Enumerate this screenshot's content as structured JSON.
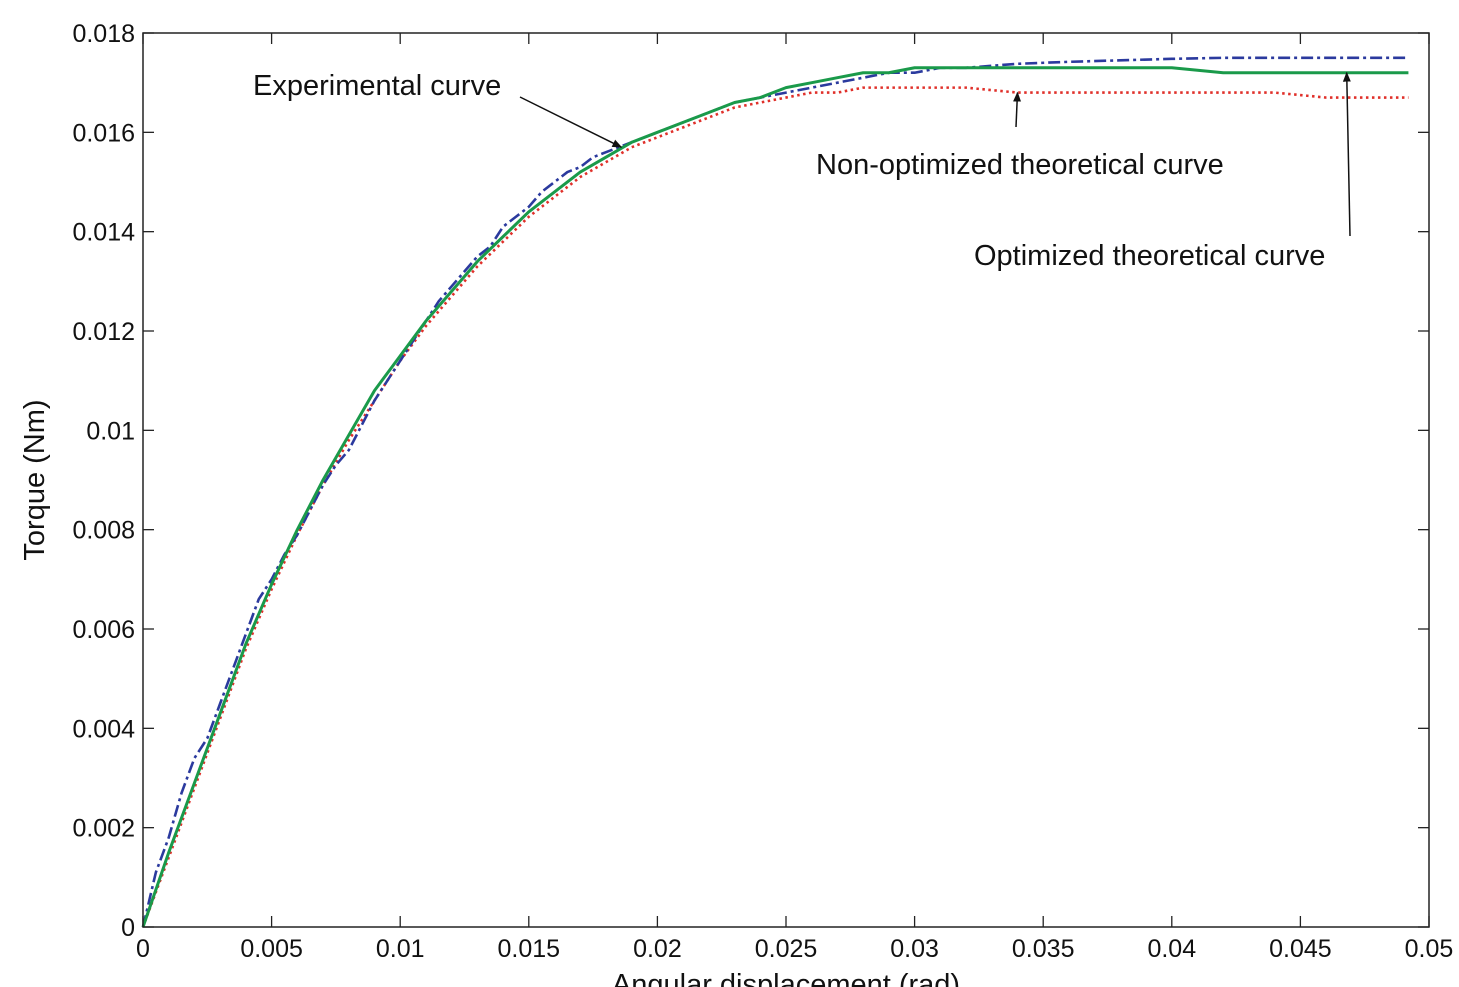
{
  "chart_data": {
    "type": "line",
    "title": "",
    "xlabel": "Angular displacement (rad)",
    "ylabel": "Torque (Nm)",
    "xlim": [
      0,
      0.05
    ],
    "ylim": [
      0,
      0.018
    ],
    "xticks": [
      "0",
      "0.005",
      "0.01",
      "0.015",
      "0.02",
      "0.025",
      "0.03",
      "0.035",
      "0.04",
      "0.045",
      "0.05"
    ],
    "yticks": [
      "0",
      "0.002",
      "0.004",
      "0.006",
      "0.008",
      "0.01",
      "0.012",
      "0.014",
      "0.016",
      "0.018"
    ],
    "grid": false,
    "series": [
      {
        "name": "Experimental curve",
        "color": "#2b3a9e",
        "style": "dashdot",
        "x": [
          0,
          0.0005,
          0.001,
          0.0015,
          0.002,
          0.0025,
          0.003,
          0.0035,
          0.004,
          0.0045,
          0.005,
          0.0055,
          0.006,
          0.0065,
          0.007,
          0.0075,
          0.008,
          0.0085,
          0.009,
          0.0095,
          0.01,
          0.0105,
          0.011,
          0.0115,
          0.012,
          0.0125,
          0.013,
          0.0135,
          0.014,
          0.0145,
          0.015,
          0.0155,
          0.016,
          0.0165,
          0.017,
          0.0175,
          0.018,
          0.0185,
          0.019,
          0.0195,
          0.02,
          0.021,
          0.022,
          0.023,
          0.024,
          0.025,
          0.026,
          0.027,
          0.028,
          0.029,
          0.03,
          0.031,
          0.032,
          0.034,
          0.036,
          0.038,
          0.04,
          0.042,
          0.044,
          0.046,
          0.048,
          0.0492
        ],
        "y": [
          0,
          0.0011,
          0.0018,
          0.0027,
          0.0034,
          0.0038,
          0.0045,
          0.0052,
          0.0059,
          0.0066,
          0.007,
          0.0075,
          0.0079,
          0.0084,
          0.0089,
          0.0093,
          0.0096,
          0.0101,
          0.0106,
          0.011,
          0.0114,
          0.0118,
          0.0122,
          0.0126,
          0.0129,
          0.0132,
          0.0135,
          0.0137,
          0.0141,
          0.0143,
          0.0145,
          0.0148,
          0.015,
          0.0152,
          0.0153,
          0.0155,
          0.0156,
          0.0157,
          0.0158,
          0.0159,
          0.016,
          0.0162,
          0.0164,
          0.0166,
          0.0167,
          0.0168,
          0.0169,
          0.017,
          0.0171,
          0.0172,
          0.0172,
          0.0173,
          0.0173,
          0.01738,
          0.01742,
          0.01745,
          0.01748,
          0.0175,
          0.0175,
          0.0175,
          0.0175,
          0.0175
        ]
      },
      {
        "name": "Optimized theoretical curve",
        "color": "#1a9a4a",
        "style": "solid",
        "x": [
          0,
          0.001,
          0.002,
          0.003,
          0.004,
          0.005,
          0.006,
          0.007,
          0.008,
          0.009,
          0.01,
          0.011,
          0.012,
          0.013,
          0.014,
          0.015,
          0.016,
          0.017,
          0.018,
          0.019,
          0.02,
          0.021,
          0.022,
          0.023,
          0.024,
          0.025,
          0.026,
          0.027,
          0.028,
          0.029,
          0.03,
          0.032,
          0.034,
          0.036,
          0.038,
          0.04,
          0.042,
          0.044,
          0.046,
          0.048,
          0.0492
        ],
        "y": [
          0,
          0.0015,
          0.0029,
          0.0043,
          0.0057,
          0.0069,
          0.008,
          0.009,
          0.0099,
          0.0108,
          0.0115,
          0.0122,
          0.0128,
          0.0134,
          0.0139,
          0.0144,
          0.0148,
          0.0152,
          0.0155,
          0.0158,
          0.016,
          0.0162,
          0.0164,
          0.0166,
          0.0167,
          0.0169,
          0.017,
          0.0171,
          0.0172,
          0.0172,
          0.0173,
          0.0173,
          0.0173,
          0.0173,
          0.0173,
          0.0173,
          0.0172,
          0.0172,
          0.0172,
          0.0172,
          0.0172
        ]
      },
      {
        "name": "Non-optimized theoretical curve",
        "color": "#e0302a",
        "style": "dotted",
        "x": [
          0,
          0.001,
          0.002,
          0.003,
          0.004,
          0.005,
          0.006,
          0.007,
          0.008,
          0.009,
          0.01,
          0.011,
          0.012,
          0.013,
          0.014,
          0.015,
          0.016,
          0.017,
          0.018,
          0.019,
          0.02,
          0.021,
          0.022,
          0.023,
          0.024,
          0.025,
          0.026,
          0.027,
          0.028,
          0.029,
          0.03,
          0.032,
          0.034,
          0.036,
          0.038,
          0.04,
          0.042,
          0.044,
          0.046,
          0.048,
          0.0492
        ],
        "y": [
          0,
          0.0014,
          0.0028,
          0.0042,
          0.0056,
          0.0068,
          0.0079,
          0.0089,
          0.0098,
          0.0106,
          0.0114,
          0.0121,
          0.0127,
          0.0133,
          0.0138,
          0.0143,
          0.0147,
          0.0151,
          0.0154,
          0.0157,
          0.0159,
          0.0161,
          0.0163,
          0.0165,
          0.0166,
          0.0167,
          0.0168,
          0.0168,
          0.0169,
          0.0169,
          0.0169,
          0.0169,
          0.0168,
          0.0168,
          0.0168,
          0.0168,
          0.0168,
          0.0168,
          0.0167,
          0.0167,
          0.0167
        ]
      }
    ],
    "annotations": [
      {
        "text": "Experimental curve",
        "series": "Experimental curve",
        "arrow_to": [
          0.0186,
          0.0157
        ]
      },
      {
        "text": "Non-optimized theoretical curve",
        "series": "Non-optimized theoretical curve",
        "arrow_to": [
          0.034,
          0.0168
        ]
      },
      {
        "text": "Optimized theoretical curve",
        "series": "Optimized theoretical curve",
        "arrow_to": [
          0.0468,
          0.0172
        ]
      }
    ]
  }
}
